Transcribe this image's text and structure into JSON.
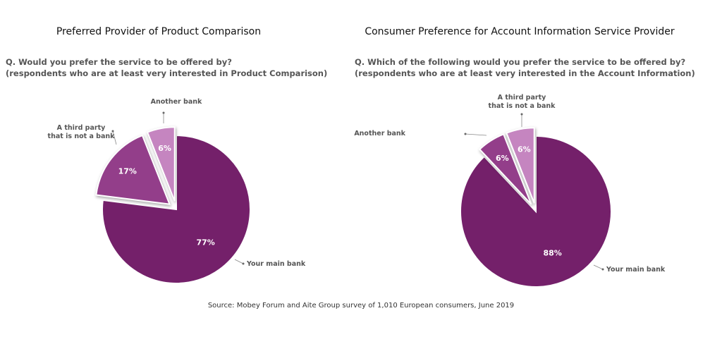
{
  "chart_data": [
    {
      "type": "pie",
      "title": "Preferred Provider of Product Comparison",
      "subtitle": "Q. Would you prefer the service to be offered by?\n(respondents who are at least very interested in Product Comparison)",
      "categories": [
        "Your main bank",
        "A third party\nthat is not a bank",
        "Another bank"
      ],
      "values": [
        77,
        17,
        6
      ],
      "value_labels": [
        "77%",
        "17%",
        "6%"
      ],
      "colors": [
        "#74206a",
        "#933e8a",
        "#c585c0"
      ]
    },
    {
      "type": "pie",
      "title": "Consumer Preference for Account Information Service Provider",
      "subtitle": "Q. Which of the following would you prefer the service to be offered by?\n(respondents who are at least very interested in the Account Information)",
      "categories": [
        "Your main bank",
        "Another bank",
        "A third party\nthat is not a bank"
      ],
      "values": [
        88,
        6,
        6
      ],
      "value_labels": [
        "88%",
        "6%",
        "6%"
      ],
      "colors": [
        "#74206a",
        "#933e8a",
        "#c585c0"
      ]
    }
  ],
  "source": "Source: Mobey Forum and Aite Group survey of 1,010 European consumers, June 2019"
}
